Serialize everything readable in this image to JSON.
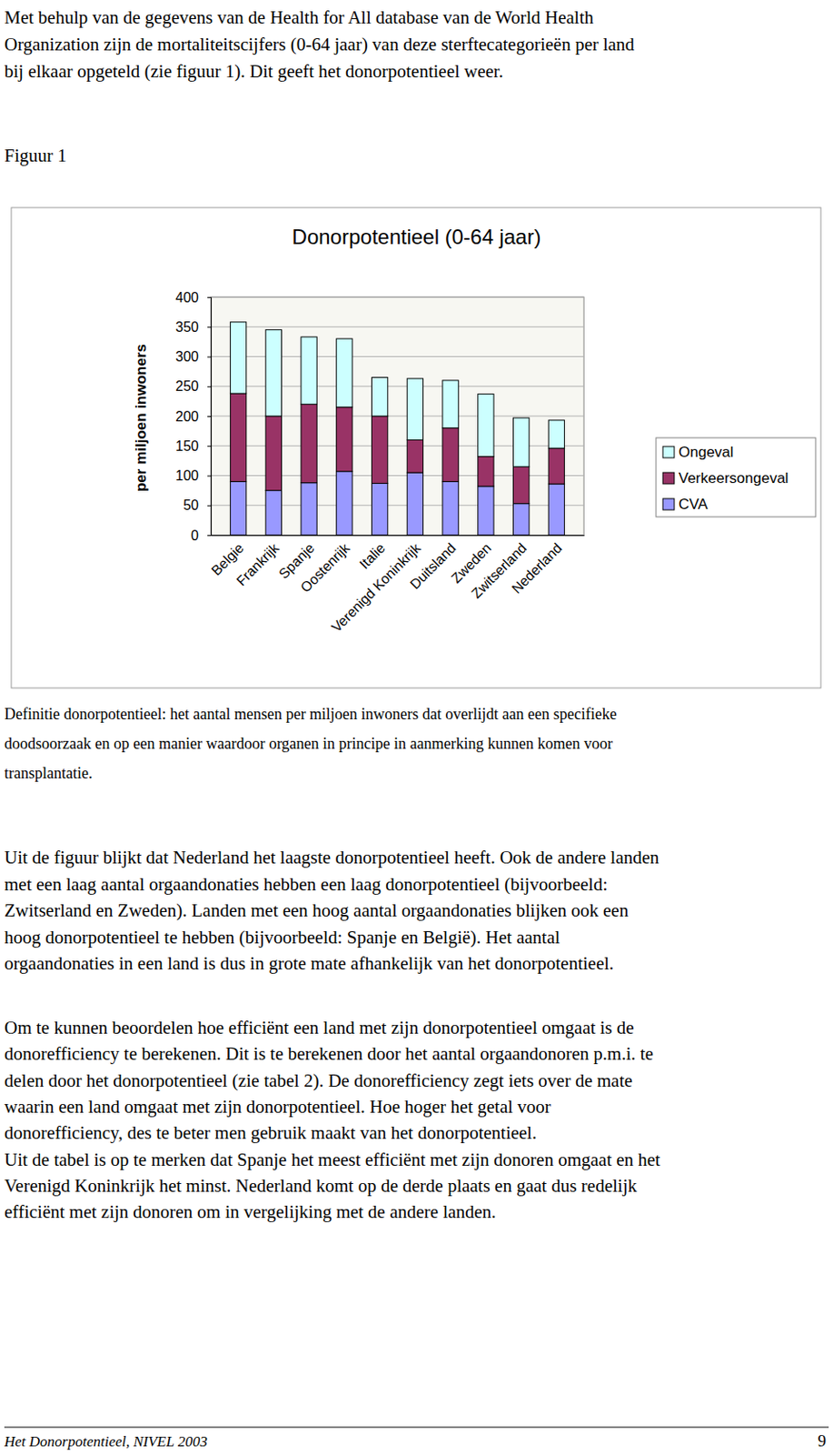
{
  "document": {
    "intro": [
      "Met behulp van de gegevens van de Health for All database van de World Health",
      "Organization zijn de mortaliteitscijfers (0-64 jaar) van deze sterftecategorieën per land",
      "bij elkaar opgeteld (zie figuur 1). Dit geeft het donorpotentieel weer."
    ],
    "figure_label": "Figuur 1",
    "definition": [
      "Definitie donorpotentieel: het aantal mensen per miljoen inwoners dat overlijdt aan een specifieke",
      "doodsoorzaak en op een manier waardoor organen in principe in aanmerking kunnen komen voor",
      "transplantatie."
    ],
    "paragraph_2": [
      "Uit de figuur blijkt dat Nederland het laagste donorpotentieel heeft. Ook de andere landen",
      "met een laag aantal orgaandonaties hebben een laag donorpotentieel (bijvoorbeeld:",
      "Zwitserland en Zweden). Landen met een hoog aantal orgaandonaties blijken ook een",
      "hoog donorpotentieel te hebben (bijvoorbeeld: Spanje en België). Het aantal",
      "orgaandonaties in een land is dus in grote mate afhankelijk van het donorpotentieel."
    ],
    "paragraph_3": [
      "Om te kunnen beoordelen hoe efficiënt een land met zijn donorpotentieel omgaat is de",
      "donorefficiency te berekenen. Dit is te berekenen door het aantal orgaandonoren p.m.i. te",
      "delen door het donorpotentieel (zie tabel 2). De donorefficiency zegt iets over de mate",
      "waarin een land omgaat met zijn donorpotentieel. Hoe hoger het getal voor",
      "donorefficiency, des te beter men gebruik maakt van het donorpotentieel.",
      "Uit de tabel is op te merken dat Spanje het meest efficiënt met zijn donoren omgaat en het",
      "Verenigd Koninkrijk het minst. Nederland komt op de derde plaats en gaat dus redelijk",
      "efficiënt met zijn donoren om in vergelijking met de andere landen."
    ],
    "footer": {
      "source": "Het Donorpotentieel, NIVEL 2003",
      "page": "9"
    }
  },
  "chart_data": {
    "type": "bar",
    "title": "Donorpotentieel (0-64 jaar)",
    "y_label": "per miljoen inwoners",
    "stacked": true,
    "categories": [
      "Belgie",
      "Frankrijk",
      "Spanje",
      "Oostenrijk",
      "Italie",
      "Verenigd Koninkrijk",
      "Duitsland",
      "Zweden",
      "Zwitserland",
      "Nederland"
    ],
    "series": [
      {
        "name": "CVA",
        "color": "#9999ff",
        "values": [
          90,
          75,
          88,
          107,
          87,
          105,
          90,
          82,
          53,
          86
        ]
      },
      {
        "name": "Verkeersongeval",
        "color": "#993366",
        "values": [
          148,
          125,
          132,
          108,
          113,
          55,
          90,
          50,
          62,
          60
        ]
      },
      {
        "name": "Ongeval",
        "color": "#ccffff",
        "values": [
          120,
          145,
          113,
          115,
          65,
          103,
          80,
          105,
          82,
          47
        ]
      }
    ],
    "ylim": [
      0,
      400
    ],
    "yticks": [
      0,
      50,
      100,
      150,
      200,
      250,
      300,
      350,
      400
    ],
    "grid": true,
    "legend": "right"
  }
}
